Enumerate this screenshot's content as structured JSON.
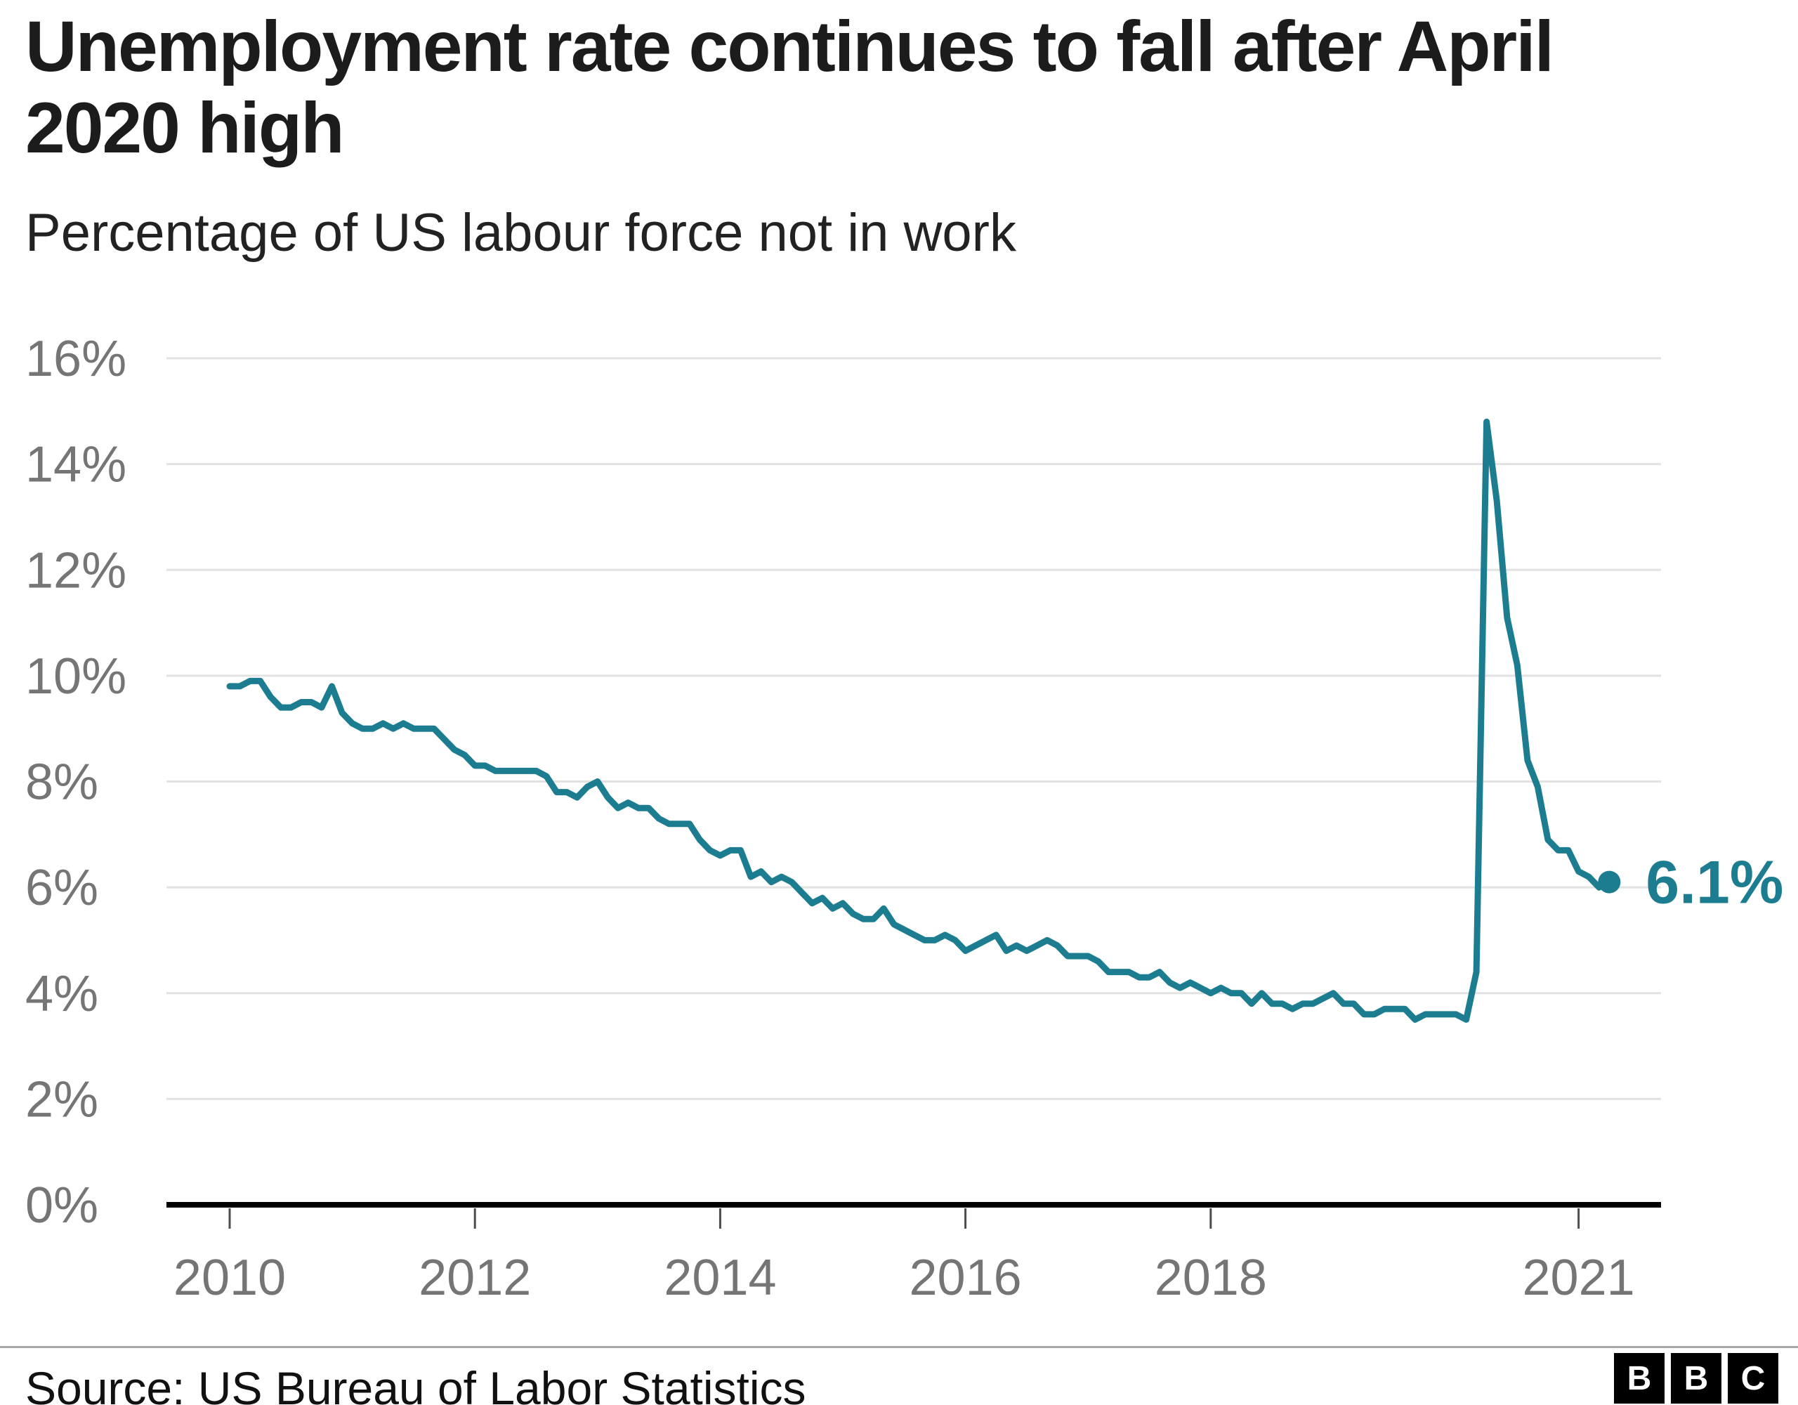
{
  "header": {
    "title": "Unemployment rate continues to fall after April 2020 high",
    "subtitle": "Percentage of US labour force not in work"
  },
  "footer": {
    "source": "Source: US Bureau of Labor Statistics",
    "logo_letters": [
      "B",
      "B",
      "C"
    ]
  },
  "colors": {
    "line": "#1d7d90",
    "grid": "#e2e2e2",
    "axis": "#000000",
    "tick_label": "#757575",
    "title": "#1c1c1c",
    "logo_bg": "#000000",
    "logo_text": "#ffffff"
  },
  "chart_data": {
    "type": "line",
    "title": "Unemployment rate continues to fall after April 2020 high",
    "subtitle": "Percentage of US labour force not in work",
    "series_name": "US unemployment rate",
    "x_start": "2010-01",
    "x_end": "2021-04",
    "x_frequency": "monthly",
    "values": [
      9.8,
      9.8,
      9.9,
      9.9,
      9.6,
      9.4,
      9.4,
      9.5,
      9.5,
      9.4,
      9.8,
      9.3,
      9.1,
      9.0,
      9.0,
      9.1,
      9.0,
      9.1,
      9.0,
      9.0,
      9.0,
      8.8,
      8.6,
      8.5,
      8.3,
      8.3,
      8.2,
      8.2,
      8.2,
      8.2,
      8.2,
      8.1,
      7.8,
      7.8,
      7.7,
      7.9,
      8.0,
      7.7,
      7.5,
      7.6,
      7.5,
      7.5,
      7.3,
      7.2,
      7.2,
      7.2,
      6.9,
      6.7,
      6.6,
      6.7,
      6.7,
      6.2,
      6.3,
      6.1,
      6.2,
      6.1,
      5.9,
      5.7,
      5.8,
      5.6,
      5.7,
      5.5,
      5.4,
      5.4,
      5.6,
      5.3,
      5.2,
      5.1,
      5.0,
      5.0,
      5.1,
      5.0,
      4.8,
      4.9,
      5.0,
      5.1,
      4.8,
      4.9,
      4.8,
      4.9,
      5.0,
      4.9,
      4.7,
      4.7,
      4.7,
      4.6,
      4.4,
      4.4,
      4.4,
      4.3,
      4.3,
      4.4,
      4.2,
      4.1,
      4.2,
      4.1,
      4.0,
      4.1,
      4.0,
      4.0,
      3.8,
      4.0,
      3.8,
      3.8,
      3.7,
      3.8,
      3.8,
      3.9,
      4.0,
      3.8,
      3.8,
      3.6,
      3.6,
      3.7,
      3.7,
      3.7,
      3.5,
      3.6,
      3.6,
      3.6,
      3.6,
      3.5,
      4.4,
      14.8,
      13.3,
      11.1,
      10.2,
      8.4,
      7.9,
      6.9,
      6.7,
      6.7,
      6.3,
      6.2,
      6.0,
      6.1
    ],
    "ylim": [
      0,
      16
    ],
    "y_ticks": [
      16,
      14,
      12,
      10,
      8,
      6,
      4,
      2,
      0
    ],
    "y_tick_labels": [
      "16%",
      "14%",
      "12%",
      "10%",
      "8%",
      "6%",
      "4%",
      "2%",
      "0%"
    ],
    "x_ticks": [
      2010,
      2012,
      2014,
      2016,
      2018,
      2021
    ],
    "x_tick_labels": [
      "2010",
      "2012",
      "2014",
      "2016",
      "2018",
      "2021"
    ],
    "end_label": "6.1%",
    "end_value": 6.1,
    "grid": "horizontal",
    "legend": "none"
  }
}
